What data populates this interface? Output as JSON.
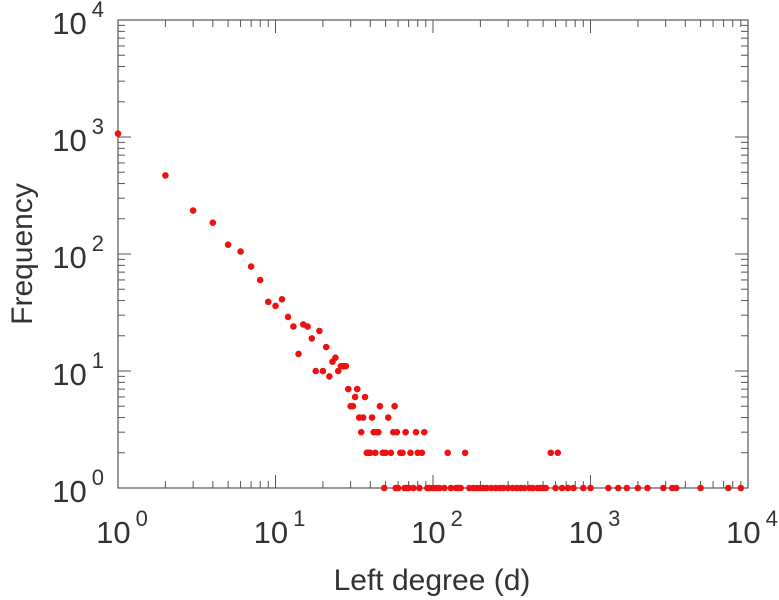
{
  "chart_data": {
    "type": "scatter",
    "xlabel": "Left degree (d)",
    "ylabel": "Frequency",
    "xscale": "log",
    "yscale": "log",
    "xlim": [
      1,
      10000
    ],
    "ylim": [
      1,
      10000
    ],
    "grid": false,
    "marker_color": "#ee1111",
    "x_ticks": [
      {
        "base": "10",
        "exp": "0"
      },
      {
        "base": "10",
        "exp": "1"
      },
      {
        "base": "10",
        "exp": "2"
      },
      {
        "base": "10",
        "exp": "3"
      },
      {
        "base": "10",
        "exp": "4"
      }
    ],
    "y_ticks": [
      {
        "base": "10",
        "exp": "0"
      },
      {
        "base": "10",
        "exp": "1"
      },
      {
        "base": "10",
        "exp": "2"
      },
      {
        "base": "10",
        "exp": "3"
      },
      {
        "base": "10",
        "exp": "4"
      }
    ],
    "points": [
      [
        1,
        1070
      ],
      [
        2,
        470
      ],
      [
        3,
        235
      ],
      [
        4,
        185
      ],
      [
        5,
        120
      ],
      [
        6,
        105
      ],
      [
        7,
        78
      ],
      [
        8,
        60
      ],
      [
        9,
        39
      ],
      [
        10,
        36
      ],
      [
        11,
        41
      ],
      [
        12,
        29
      ],
      [
        13,
        24
      ],
      [
        14,
        14
      ],
      [
        15,
        25
      ],
      [
        16,
        24
      ],
      [
        17,
        19
      ],
      [
        18,
        10
      ],
      [
        19,
        22
      ],
      [
        20,
        10
      ],
      [
        21,
        16
      ],
      [
        22,
        9
      ],
      [
        23,
        12
      ],
      [
        24,
        13
      ],
      [
        25,
        10
      ],
      [
        26,
        11
      ],
      [
        27,
        11
      ],
      [
        28,
        11
      ],
      [
        29,
        7
      ],
      [
        30,
        5
      ],
      [
        31,
        5
      ],
      [
        32,
        6
      ],
      [
        33,
        7
      ],
      [
        34,
        4
      ],
      [
        35,
        3
      ],
      [
        36,
        4
      ],
      [
        37,
        6
      ],
      [
        38,
        2
      ],
      [
        39,
        2
      ],
      [
        40,
        2
      ],
      [
        41,
        4
      ],
      [
        42,
        3
      ],
      [
        43,
        2
      ],
      [
        44,
        3
      ],
      [
        45,
        3
      ],
      [
        46,
        5
      ],
      [
        48,
        2
      ],
      [
        49,
        1
      ],
      [
        50,
        2
      ],
      [
        52,
        4
      ],
      [
        54,
        2
      ],
      [
        56,
        3
      ],
      [
        57,
        5
      ],
      [
        58,
        1
      ],
      [
        59,
        3
      ],
      [
        60,
        1
      ],
      [
        62,
        2
      ],
      [
        64,
        2
      ],
      [
        66,
        1
      ],
      [
        67,
        3
      ],
      [
        68,
        1
      ],
      [
        70,
        1
      ],
      [
        72,
        2
      ],
      [
        75,
        1
      ],
      [
        78,
        3
      ],
      [
        80,
        2
      ],
      [
        82,
        1
      ],
      [
        85,
        2
      ],
      [
        88,
        3
      ],
      [
        92,
        1
      ],
      [
        95,
        1
      ],
      [
        100,
        1
      ],
      [
        105,
        1
      ],
      [
        110,
        1
      ],
      [
        118,
        1
      ],
      [
        124,
        2
      ],
      [
        130,
        1
      ],
      [
        140,
        1
      ],
      [
        145,
        1
      ],
      [
        150,
        1
      ],
      [
        160,
        2
      ],
      [
        170,
        1
      ],
      [
        180,
        1
      ],
      [
        190,
        1
      ],
      [
        200,
        1
      ],
      [
        210,
        1
      ],
      [
        220,
        1
      ],
      [
        235,
        1
      ],
      [
        250,
        1
      ],
      [
        265,
        1
      ],
      [
        280,
        1
      ],
      [
        300,
        1
      ],
      [
        320,
        1
      ],
      [
        340,
        1
      ],
      [
        360,
        1
      ],
      [
        380,
        1
      ],
      [
        410,
        1
      ],
      [
        430,
        1
      ],
      [
        460,
        1
      ],
      [
        480,
        1
      ],
      [
        500,
        1
      ],
      [
        520,
        1
      ],
      [
        560,
        2
      ],
      [
        600,
        1
      ],
      [
        620,
        2
      ],
      [
        660,
        1
      ],
      [
        720,
        1
      ],
      [
        780,
        1
      ],
      [
        900,
        1
      ],
      [
        1000,
        1
      ],
      [
        1300,
        1
      ],
      [
        1500,
        1
      ],
      [
        1700,
        1
      ],
      [
        2000,
        1
      ],
      [
        2300,
        1
      ],
      [
        2900,
        1
      ],
      [
        3300,
        1
      ],
      [
        3500,
        1
      ],
      [
        5000,
        1
      ],
      [
        7500,
        1
      ],
      [
        9000,
        1
      ]
    ]
  }
}
